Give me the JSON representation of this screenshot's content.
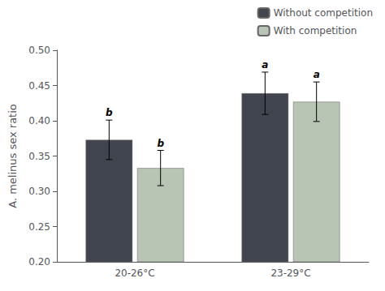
{
  "chart_data": {
    "type": "bar",
    "categories": [
      "20-26°C",
      "23-29°C"
    ],
    "series": [
      {
        "name": "Without competition",
        "color": "#404550",
        "values": [
          0.373,
          0.439
        ],
        "errors": [
          0.028,
          0.03
        ],
        "letters": [
          "b",
          "a"
        ]
      },
      {
        "name": "With competition",
        "color": "#b8c4b4",
        "values": [
          0.333,
          0.427
        ],
        "errors": [
          0.025,
          0.028
        ],
        "letters": [
          "b",
          "a"
        ]
      }
    ],
    "ylabel": "A. melinus sex ratio",
    "ylim": [
      0.2,
      0.5
    ],
    "yticks": [
      {
        "value": 0.2,
        "label": "0.20"
      },
      0.25,
      {
        "value": 0.3,
        "label": "0.30"
      },
      0.35,
      {
        "value": 0.4,
        "label": "0.40"
      },
      0.45,
      {
        "value": 0.5,
        "label": "0.50"
      }
    ],
    "legend": "upper right",
    "grid": false
  }
}
